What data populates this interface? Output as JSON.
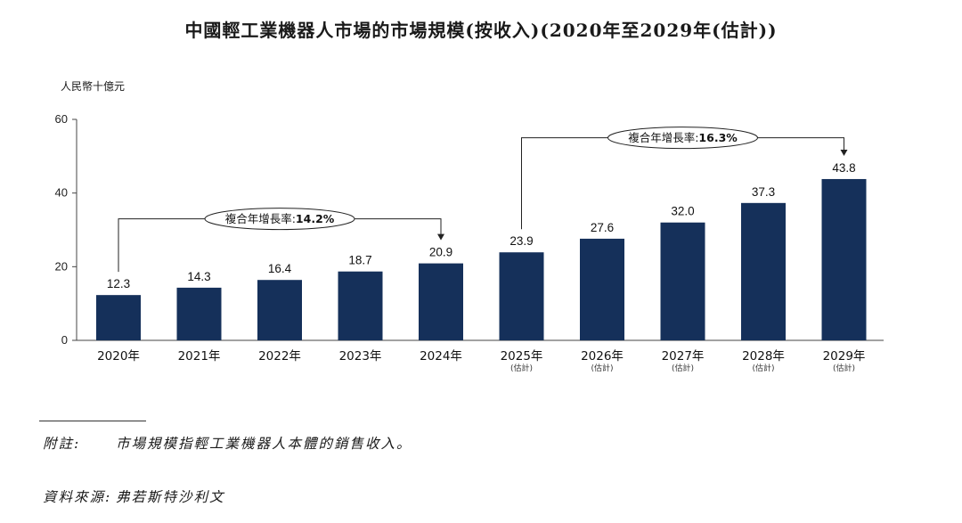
{
  "chart_data": {
    "type": "bar",
    "title": "中國輕工業機器人市場的市場規模(按收入)(2020年至2029年(估計))",
    "ylabel": "人民幣十億元",
    "ylim": [
      0,
      60
    ],
    "yticks": [
      "0",
      "20",
      "40",
      "60"
    ],
    "categories": [
      "2020年",
      "2021年",
      "2022年",
      "2023年",
      "2024年",
      "2025年",
      "2026年",
      "2027年",
      "2028年",
      "2029年"
    ],
    "subcategories": [
      "",
      "",
      "",
      "",
      "",
      "(估計)",
      "(估計)",
      "(估計)",
      "(估計)",
      "(估計)"
    ],
    "values": [
      12.3,
      14.3,
      16.4,
      18.7,
      20.9,
      23.9,
      27.6,
      32.0,
      37.3,
      43.8
    ],
    "value_labels": [
      "12.3",
      "14.3",
      "16.4",
      "18.7",
      "20.9",
      "23.9",
      "27.6",
      "32.0",
      "37.3",
      "43.8"
    ],
    "bar_color": "#15305a",
    "grid": false,
    "annotations": [
      {
        "label": "複合年增長率:",
        "value": "14.2%",
        "from_index": 0,
        "to_index": 4,
        "bracket_level": 33
      },
      {
        "label": "複合年增長率:",
        "value": "16.3%",
        "from_index": 5,
        "to_index": 9,
        "bracket_level": 55
      }
    ]
  },
  "footnotes": {
    "note_label": "附註:",
    "note_text": "市場規模指輕工業機器人本體的銷售收入。",
    "source_label": "資料來源:",
    "source_text": "弗若斯特沙利文"
  }
}
